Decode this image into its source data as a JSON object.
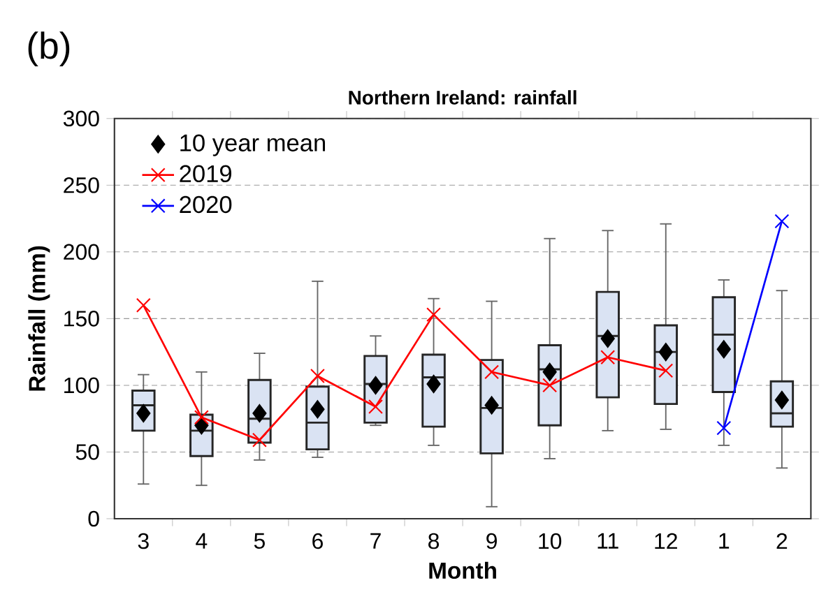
{
  "chart_data": {
    "type": "box",
    "title": "Northern Ireland: rainfall",
    "xlabel": "Month",
    "ylabel": "Rainfall (mm)",
    "annotations": [
      "(b)"
    ],
    "categories": [
      "3",
      "4",
      "5",
      "6",
      "7",
      "8",
      "9",
      "10",
      "11",
      "12",
      "1",
      "2"
    ],
    "boxes": [
      {
        "low": 26,
        "q1": 66,
        "median": 85,
        "q3": 96,
        "high": 108
      },
      {
        "low": 25,
        "q1": 47,
        "median": 66,
        "q3": 78,
        "high": 110
      },
      {
        "low": 44,
        "q1": 57,
        "median": 75,
        "q3": 104,
        "high": 124
      },
      {
        "low": 46,
        "q1": 52,
        "median": 72,
        "q3": 99,
        "high": 178
      },
      {
        "low": 70,
        "q1": 72,
        "median": 101,
        "q3": 122,
        "high": 137
      },
      {
        "low": 55,
        "q1": 69,
        "median": 106,
        "q3": 123,
        "high": 165
      },
      {
        "low": 9,
        "q1": 49,
        "median": 83,
        "q3": 119,
        "high": 163
      },
      {
        "low": 45,
        "q1": 70,
        "median": 112,
        "q3": 130,
        "high": 210
      },
      {
        "low": 66,
        "q1": 91,
        "median": 137,
        "q3": 170,
        "high": 216
      },
      {
        "low": 67,
        "q1": 86,
        "median": 125,
        "q3": 145,
        "high": 221
      },
      {
        "low": 55,
        "q1": 95,
        "median": 138,
        "q3": 166,
        "high": 179
      },
      {
        "low": 38,
        "q1": 69,
        "median": 79,
        "q3": 103,
        "high": 171
      }
    ],
    "colors": [
      "#dae3f3",
      "#dae3f3",
      "#dae3f3",
      "#dae3f3",
      "#dae3f3",
      "#dae3f3",
      "#dae3f3",
      "#dae3f3",
      "#dae3f3",
      "#dae3f3",
      "#dae3f3",
      "#dae3f3"
    ],
    "series": [
      {
        "name": "10 year mean",
        "type": "scatter",
        "color": "#000000",
        "marker": "diamond",
        "values": [
          79,
          70,
          79,
          82,
          100,
          101,
          85,
          110,
          135,
          125,
          127,
          89
        ]
      },
      {
        "name": "2019",
        "type": "line",
        "color": "#ff0000",
        "marker": "cross",
        "values": [
          160,
          76,
          59,
          107,
          84,
          153,
          110,
          100,
          121,
          111,
          null,
          null
        ]
      },
      {
        "name": "2020",
        "type": "line",
        "color": "#0000ff",
        "marker": "cross",
        "values": [
          null,
          null,
          null,
          null,
          null,
          null,
          null,
          null,
          null,
          null,
          68,
          223
        ]
      }
    ],
    "ylim": [
      0,
      300
    ],
    "yticks": [
      0,
      50,
      100,
      150,
      200,
      250,
      300
    ],
    "grid": "y",
    "legend": "top left"
  }
}
